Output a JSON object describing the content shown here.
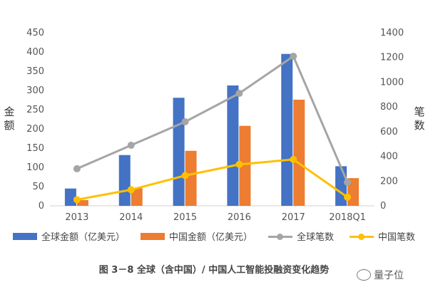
{
  "chart_data": {
    "type": "bar",
    "categories": [
      "2013",
      "2014",
      "2015",
      "2016",
      "2017",
      "2018Q1"
    ],
    "series": [
      {
        "name": "全球金额（亿美元）",
        "type": "bar",
        "axis": "left",
        "values": [
          45,
          132,
          281,
          313,
          395,
          103
        ],
        "color": "#4472C4"
      },
      {
        "name": "中国金额（亿美元）",
        "type": "bar",
        "axis": "left",
        "values": [
          15,
          46,
          143,
          208,
          276,
          72
        ],
        "color": "#ED7D31"
      },
      {
        "name": "全球笔数",
        "type": "line",
        "axis": "right",
        "values": [
          300,
          490,
          680,
          910,
          1210,
          190
        ],
        "color": "#A5A5A5"
      },
      {
        "name": "中国笔数",
        "type": "line",
        "axis": "right",
        "values": [
          50,
          130,
          245,
          335,
          375,
          70
        ],
        "color": "#FFC000"
      }
    ],
    "ylabel": "金额",
    "y2label": "笔数",
    "ylim": [
      0,
      450
    ],
    "y2lim": [
      0,
      1400
    ],
    "yticks": [
      "0",
      "50",
      "100",
      "150",
      "200",
      "250",
      "300",
      "350",
      "400",
      "450"
    ],
    "y2ticks": [
      "0",
      "200",
      "400",
      "600",
      "800",
      "1000",
      "1200",
      "1400"
    ],
    "grid": false,
    "legend_position": "bottom"
  },
  "caption": "图 3－8 全球（含中国）/ 中国人工智能投融资变化趋势",
  "watermark": "量子位"
}
